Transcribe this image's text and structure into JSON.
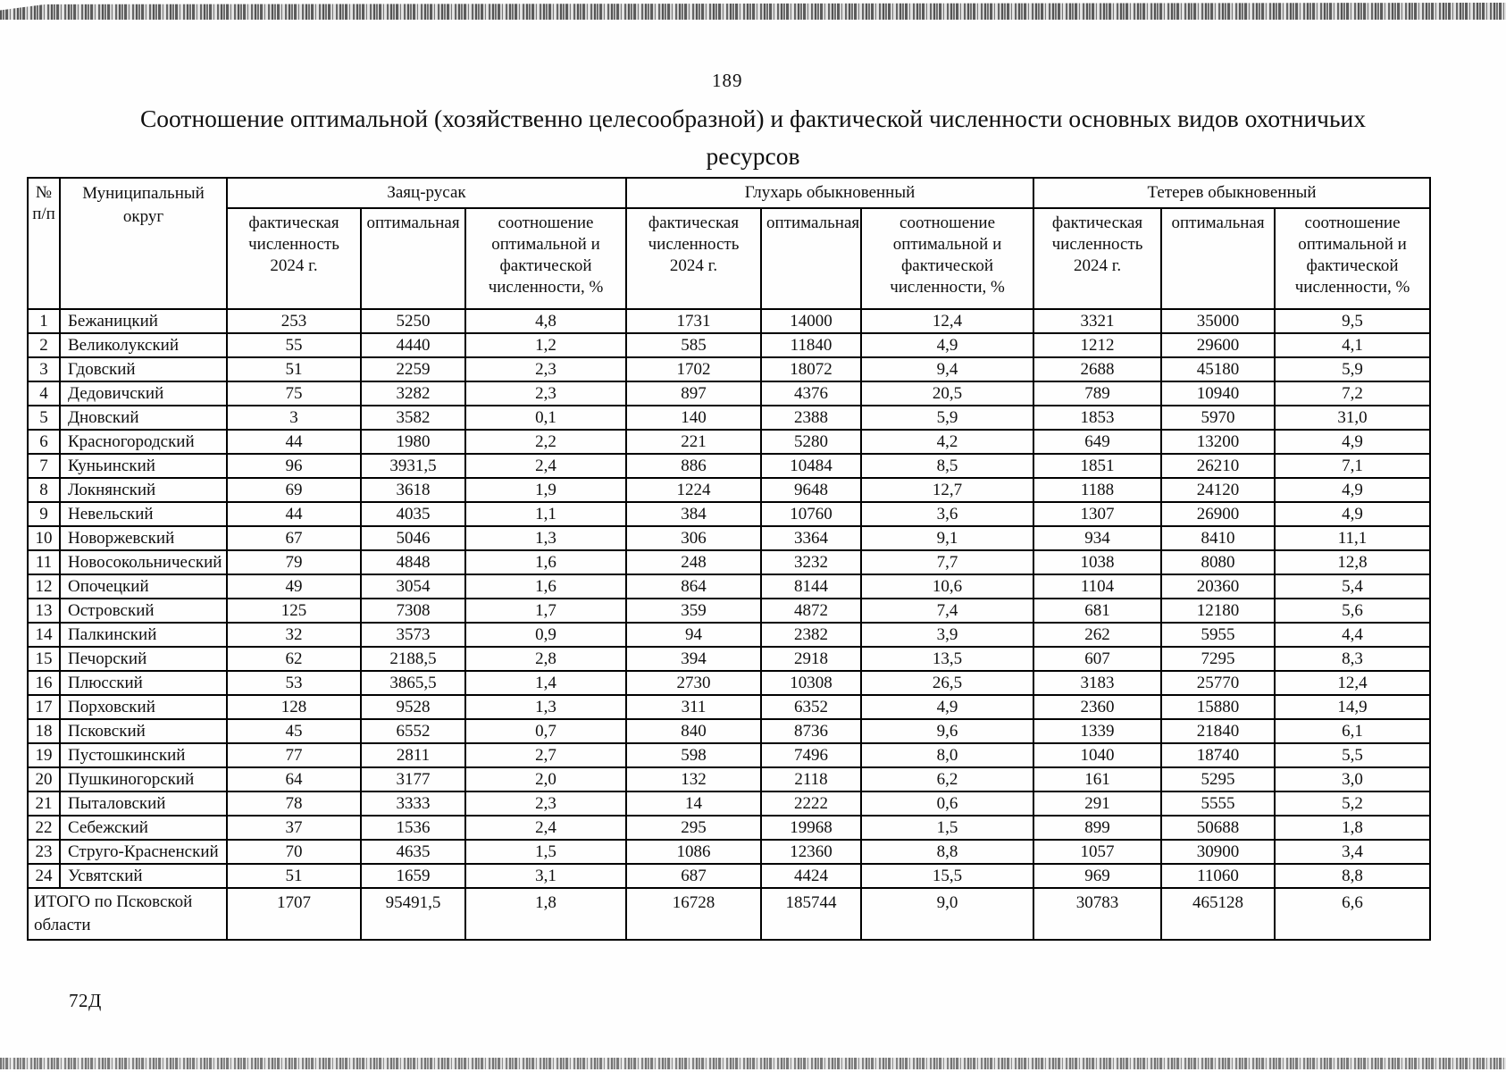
{
  "page": {
    "number": "189",
    "title_line1": "Соотношение оптимальной (хозяйственно целесообразной) и фактической численности основных видов охотничьих",
    "title_line2": "ресурсов",
    "footer_code": "72Д"
  },
  "table": {
    "corner_headers": {
      "num": "№ п/п",
      "district": "Муниципальный округ"
    },
    "species_groups": [
      "Заяц-русак",
      "Глухарь обыкновенный",
      "Тетерев обыкновенный"
    ],
    "sub_headers": [
      "фактическая численность 2024 г.",
      "оптимальная",
      "соотношение оптимальной и фактической численности, %"
    ],
    "rows": [
      {
        "num": "1",
        "district": "Бежаницкий",
        "values": [
          "253",
          "5250",
          "4,8",
          "1731",
          "14000",
          "12,4",
          "3321",
          "35000",
          "9,5"
        ]
      },
      {
        "num": "2",
        "district": "Великолукский",
        "values": [
          "55",
          "4440",
          "1,2",
          "585",
          "11840",
          "4,9",
          "1212",
          "29600",
          "4,1"
        ]
      },
      {
        "num": "3",
        "district": "Гдовский",
        "values": [
          "51",
          "2259",
          "2,3",
          "1702",
          "18072",
          "9,4",
          "2688",
          "45180",
          "5,9"
        ]
      },
      {
        "num": "4",
        "district": "Дедовичский",
        "values": [
          "75",
          "3282",
          "2,3",
          "897",
          "4376",
          "20,5",
          "789",
          "10940",
          "7,2"
        ]
      },
      {
        "num": "5",
        "district": "Дновский",
        "values": [
          "3",
          "3582",
          "0,1",
          "140",
          "2388",
          "5,9",
          "1853",
          "5970",
          "31,0"
        ]
      },
      {
        "num": "6",
        "district": "Красногородский",
        "values": [
          "44",
          "1980",
          "2,2",
          "221",
          "5280",
          "4,2",
          "649",
          "13200",
          "4,9"
        ]
      },
      {
        "num": "7",
        "district": "Куньинский",
        "values": [
          "96",
          "3931,5",
          "2,4",
          "886",
          "10484",
          "8,5",
          "1851",
          "26210",
          "7,1"
        ]
      },
      {
        "num": "8",
        "district": "Локнянский",
        "values": [
          "69",
          "3618",
          "1,9",
          "1224",
          "9648",
          "12,7",
          "1188",
          "24120",
          "4,9"
        ]
      },
      {
        "num": "9",
        "district": "Невельский",
        "values": [
          "44",
          "4035",
          "1,1",
          "384",
          "10760",
          "3,6",
          "1307",
          "26900",
          "4,9"
        ]
      },
      {
        "num": "10",
        "district": "Новоржевский",
        "values": [
          "67",
          "5046",
          "1,3",
          "306",
          "3364",
          "9,1",
          "934",
          "8410",
          "11,1"
        ]
      },
      {
        "num": "11",
        "district": "Новосокольнический",
        "values": [
          "79",
          "4848",
          "1,6",
          "248",
          "3232",
          "7,7",
          "1038",
          "8080",
          "12,8"
        ]
      },
      {
        "num": "12",
        "district": "Опочецкий",
        "values": [
          "49",
          "3054",
          "1,6",
          "864",
          "8144",
          "10,6",
          "1104",
          "20360",
          "5,4"
        ]
      },
      {
        "num": "13",
        "district": "Островский",
        "values": [
          "125",
          "7308",
          "1,7",
          "359",
          "4872",
          "7,4",
          "681",
          "12180",
          "5,6"
        ]
      },
      {
        "num": "14",
        "district": "Палкинский",
        "values": [
          "32",
          "3573",
          "0,9",
          "94",
          "2382",
          "3,9",
          "262",
          "5955",
          "4,4"
        ]
      },
      {
        "num": "15",
        "district": "Печорский",
        "values": [
          "62",
          "2188,5",
          "2,8",
          "394",
          "2918",
          "13,5",
          "607",
          "7295",
          "8,3"
        ]
      },
      {
        "num": "16",
        "district": "Плюсский",
        "values": [
          "53",
          "3865,5",
          "1,4",
          "2730",
          "10308",
          "26,5",
          "3183",
          "25770",
          "12,4"
        ]
      },
      {
        "num": "17",
        "district": "Порховский",
        "values": [
          "128",
          "9528",
          "1,3",
          "311",
          "6352",
          "4,9",
          "2360",
          "15880",
          "14,9"
        ]
      },
      {
        "num": "18",
        "district": "Псковский",
        "values": [
          "45",
          "6552",
          "0,7",
          "840",
          "8736",
          "9,6",
          "1339",
          "21840",
          "6,1"
        ]
      },
      {
        "num": "19",
        "district": "Пустошкинский",
        "values": [
          "77",
          "2811",
          "2,7",
          "598",
          "7496",
          "8,0",
          "1040",
          "18740",
          "5,5"
        ]
      },
      {
        "num": "20",
        "district": "Пушкиногорский",
        "values": [
          "64",
          "3177",
          "2,0",
          "132",
          "2118",
          "6,2",
          "161",
          "5295",
          "3,0"
        ]
      },
      {
        "num": "21",
        "district": "Пыталовский",
        "values": [
          "78",
          "3333",
          "2,3",
          "14",
          "2222",
          "0,6",
          "291",
          "5555",
          "5,2"
        ]
      },
      {
        "num": "22",
        "district": "Себежский",
        "values": [
          "37",
          "1536",
          "2,4",
          "295",
          "19968",
          "1,5",
          "899",
          "50688",
          "1,8"
        ]
      },
      {
        "num": "23",
        "district": "Струго-Красненский",
        "values": [
          "70",
          "4635",
          "1,5",
          "1086",
          "12360",
          "8,8",
          "1057",
          "30900",
          "3,4"
        ]
      },
      {
        "num": "24",
        "district": "Усвятский",
        "values": [
          "51",
          "1659",
          "3,1",
          "687",
          "4424",
          "15,5",
          "969",
          "11060",
          "8,8"
        ]
      }
    ],
    "total_row": {
      "label": "ИТОГО по Псковской области",
      "values": [
        "1707",
        "95491,5",
        "1,8",
        "16728",
        "185744",
        "9,0",
        "30783",
        "465128",
        "6,6"
      ]
    }
  }
}
